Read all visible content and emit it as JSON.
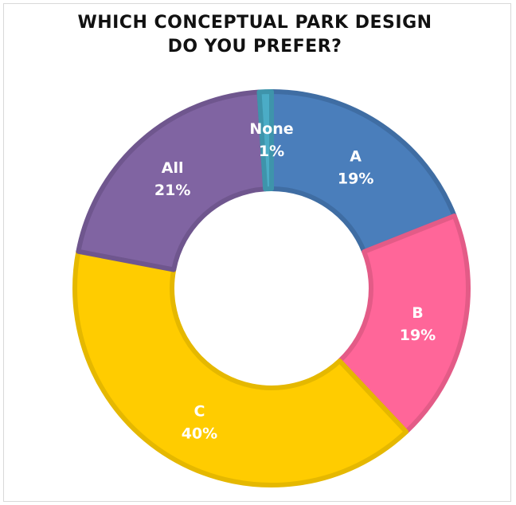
{
  "chart_data": {
    "type": "pie",
    "variant": "doughnut",
    "title_lines": [
      "WHICH CONCEPTUAL PARK DESIGN",
      "DO YOU PREFER?"
    ],
    "slices": [
      {
        "label": "A",
        "value": 19,
        "percent_label": "19%",
        "color": "#4A7EBB",
        "border": "#3F6DA3"
      },
      {
        "label": "B",
        "value": 19,
        "percent_label": "19%",
        "color": "#FF6699",
        "border": "#E35B87"
      },
      {
        "label": "C",
        "value": 40,
        "percent_label": "40%",
        "color": "#FFCC00",
        "border": "#E5B800"
      },
      {
        "label": "All",
        "value": 21,
        "percent_label": "21%",
        "color": "#8064A2",
        "border": "#6F568E"
      },
      {
        "label": "None",
        "value": 1,
        "percent_label": "1%",
        "color": "#4BACC6",
        "border": "#3E94AB"
      }
    ],
    "start": "12 o'clock",
    "direction": "clockwise",
    "legend": "none"
  }
}
